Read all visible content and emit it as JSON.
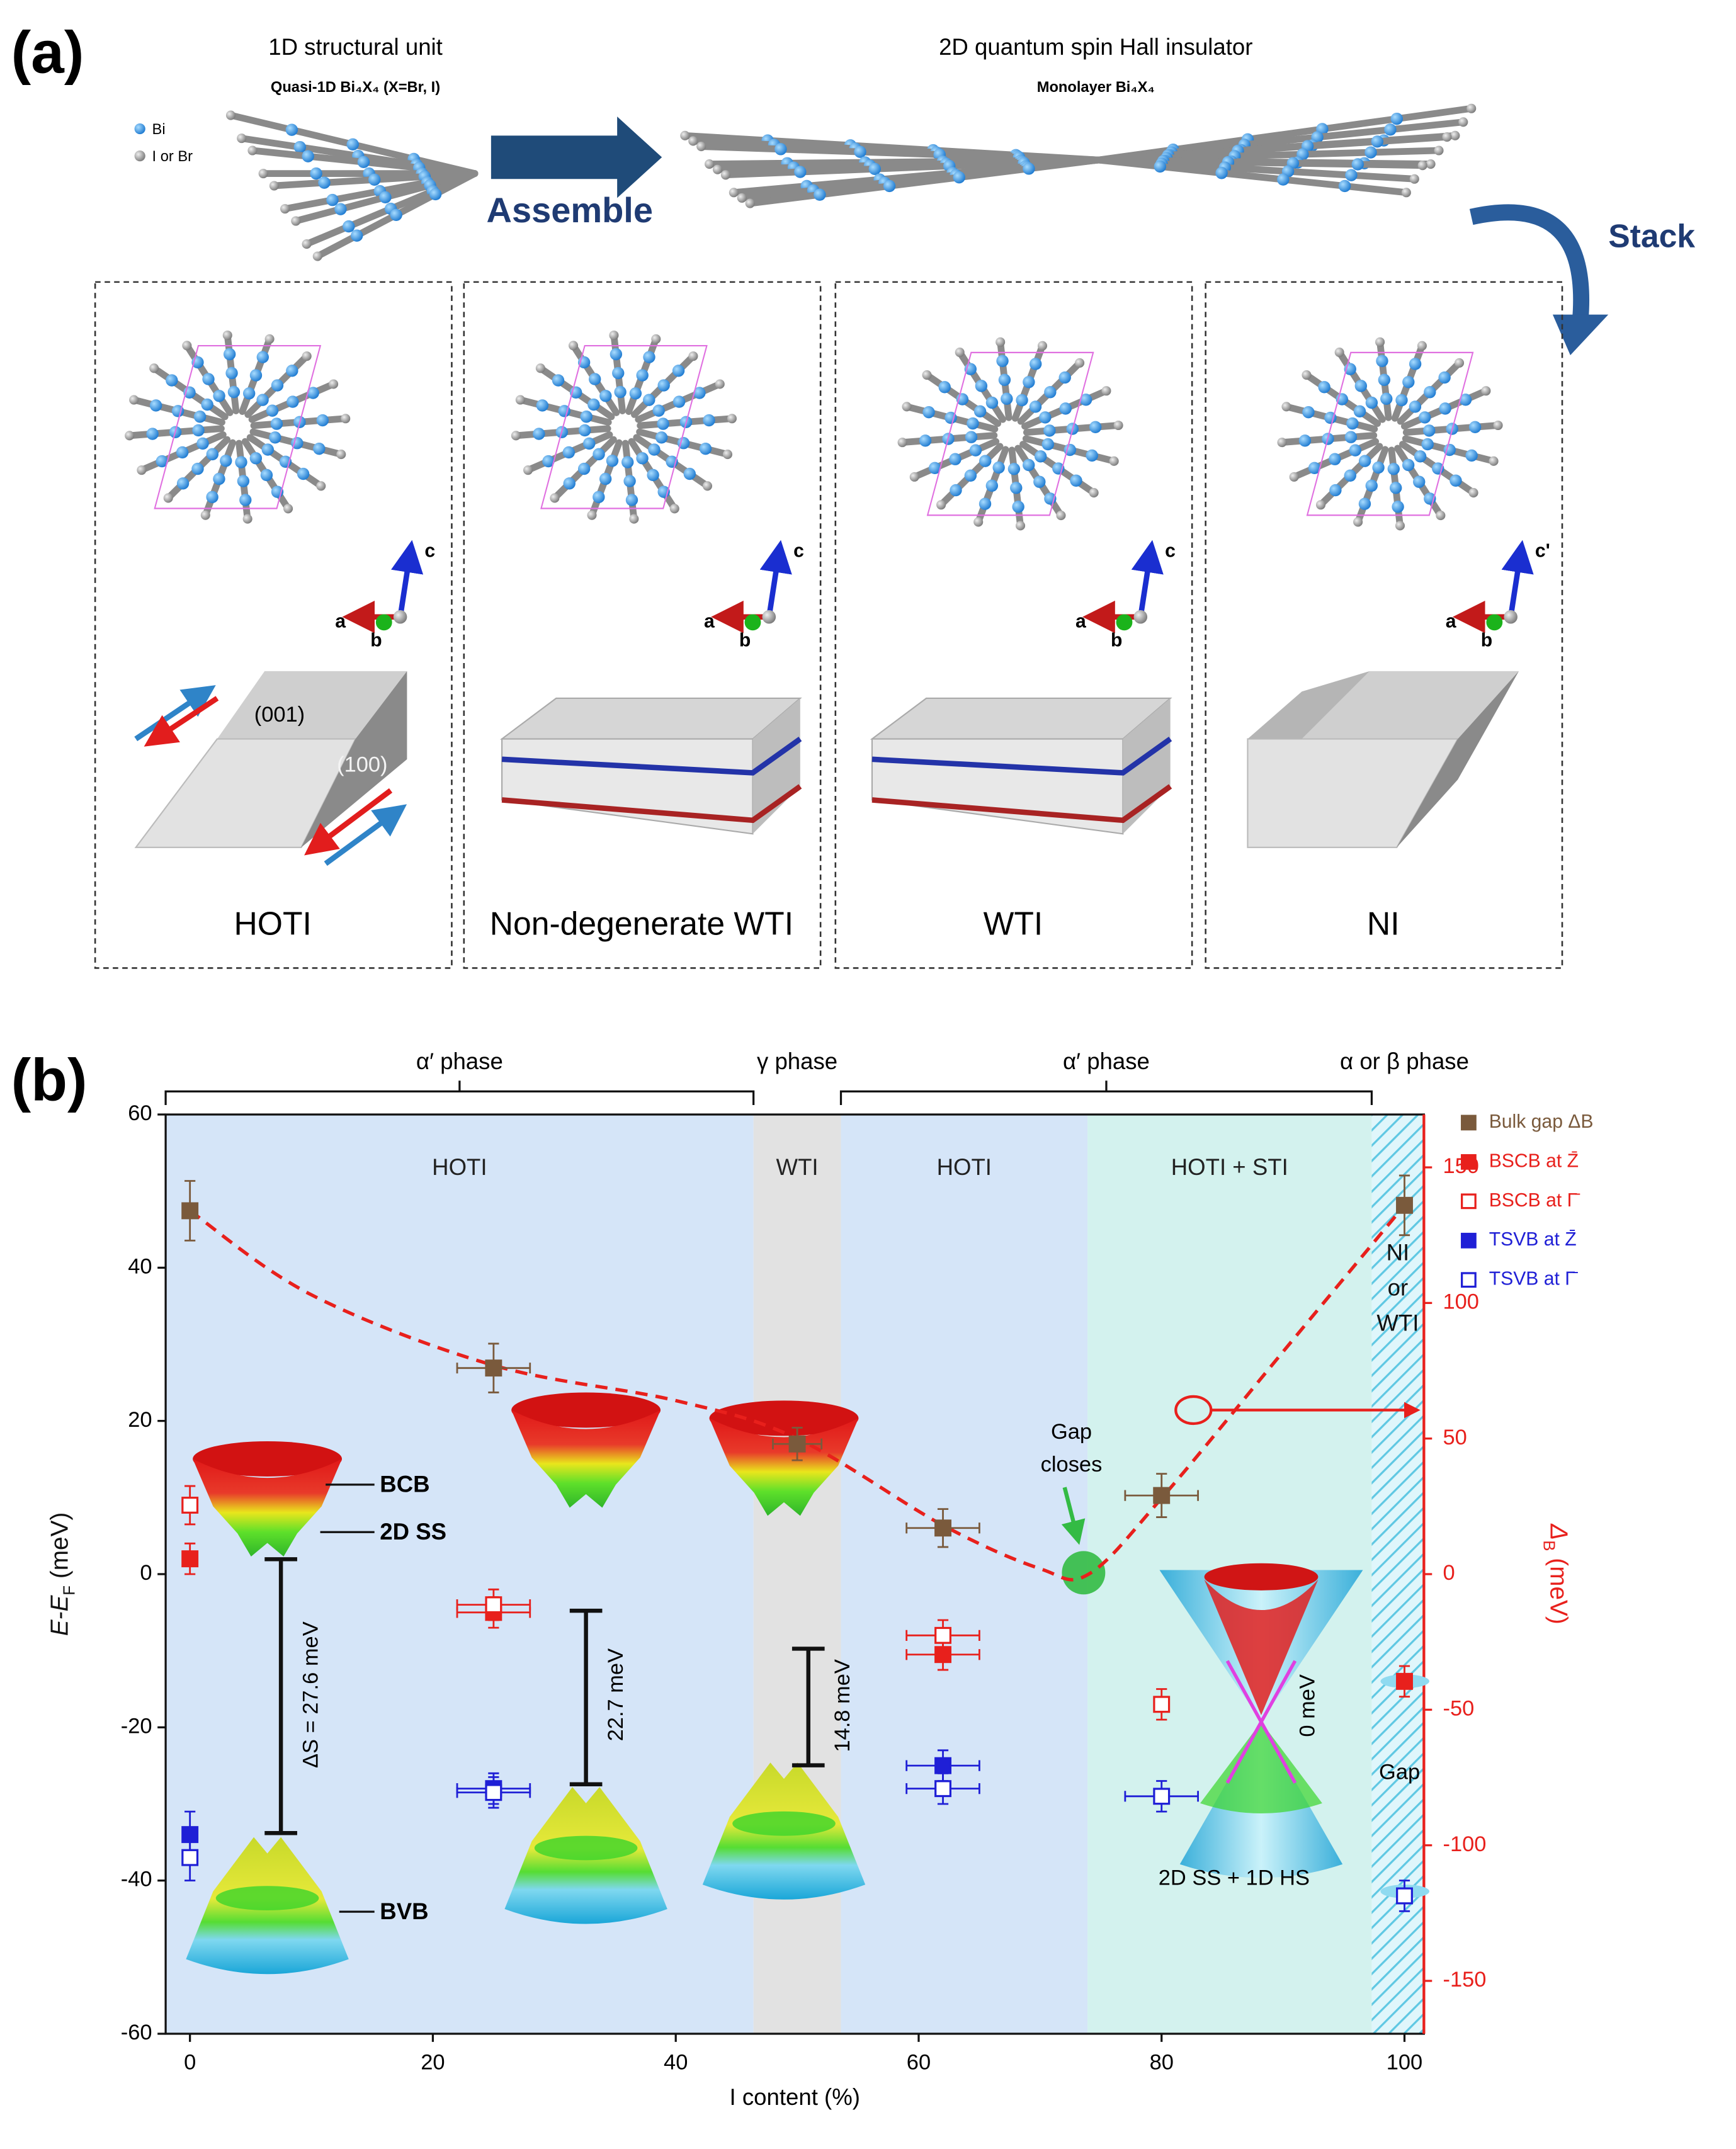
{
  "panel_a": {
    "label": "(a)",
    "left_title": "1D structural unit",
    "left_subtitle": "Quasi-1D Bi₄X₄ (X=Br, I)",
    "right_title": "2D quantum spin Hall insulator",
    "right_subtitle": "Monolayer Bi₄X₄",
    "atom_legend": [
      "Bi",
      "I or Br"
    ],
    "assemble": "Assemble",
    "stack": "Stack",
    "facets": [
      "(001)",
      "(100)"
    ],
    "phases": [
      {
        "name": "HOTI",
        "axes": [
          "a",
          "b",
          "c"
        ]
      },
      {
        "name": "Non-degenerate  WTI",
        "axes": [
          "a",
          "b",
          "c"
        ]
      },
      {
        "name": "WTI",
        "axes": [
          "a",
          "b",
          "c"
        ]
      },
      {
        "name": "NI",
        "axes": [
          "a",
          "b",
          "c'"
        ]
      }
    ]
  },
  "chart_data": {
    "type": "scatter",
    "panel_label": "(b)",
    "x_label": "I content (%)",
    "y_label": [
      "E-E",
      "F",
      " (meV)"
    ],
    "y2_label": [
      "Δ",
      "B",
      " (meV)"
    ],
    "xlim": [
      -2,
      101.6
    ],
    "ylim": [
      -60,
      60
    ],
    "y2lim": [
      -169.5,
      169.5
    ],
    "xticks": [
      0,
      20,
      40,
      60,
      80,
      100
    ],
    "yticks": [
      -60,
      -40,
      -20,
      0,
      20,
      40,
      60
    ],
    "y2ticks": [
      -150,
      -100,
      -50,
      0,
      50,
      100,
      150
    ],
    "phases": [
      {
        "label": "α′ phase",
        "from": -2,
        "to": 46.4,
        "bracket": true
      },
      {
        "label": "γ phase",
        "from": 46.4,
        "to": 53.6,
        "bracket": false
      },
      {
        "label": "α′ phase",
        "from": 53.6,
        "to": 97.3,
        "bracket": true
      },
      {
        "label": "α or β phase",
        "from": 97.3,
        "to": 101.6,
        "bracket": false
      }
    ],
    "regions": [
      {
        "label": [
          "HOTI"
        ],
        "from": -2,
        "to": 46.4,
        "color": "#d5e5f8"
      },
      {
        "label": [
          "WTI"
        ],
        "from": 46.4,
        "to": 53.6,
        "color": "#e2e2e2"
      },
      {
        "label": [
          "HOTI"
        ],
        "from": 53.6,
        "to": 73.9,
        "color": "#d5e5f8"
      },
      {
        "label": [
          "HOTI + STI"
        ],
        "from": 73.9,
        "to": 97.3,
        "color": "#d3f2ee"
      },
      {
        "label": [
          "NI",
          "or",
          "WTI"
        ],
        "from": 97.3,
        "to": 101.6,
        "color": "#bfe9f3"
      }
    ],
    "series": [
      {
        "name": "Bulk gap ΔB",
        "color": "#7a5a3c",
        "marker": "filled",
        "axis": "y2",
        "x": [
          0,
          25,
          50,
          62,
          80,
          100
        ],
        "values": [
          134,
          76,
          48,
          17,
          29,
          136
        ],
        "errors": [
          11,
          9,
          6,
          7,
          8,
          11
        ],
        "xerrors": [
          0,
          3,
          2,
          3,
          3,
          0
        ]
      },
      {
        "name": "BSCB at Z̄",
        "color": "#e8201c",
        "marker": "filled",
        "axis": "y",
        "x": [
          0,
          25,
          62,
          100
        ],
        "values": [
          2,
          -5,
          -10.5,
          -14
        ],
        "errors": [
          2,
          2,
          2,
          2
        ],
        "xerrors": [
          0,
          3,
          3,
          0
        ]
      },
      {
        "name": "BSCB at Γ̄",
        "color": "#e8201c",
        "marker": "open",
        "axis": "y",
        "x": [
          0,
          25,
          62,
          80
        ],
        "values": [
          9,
          -4,
          -8,
          -17
        ],
        "errors": [
          2.5,
          2,
          2,
          2
        ],
        "xerrors": [
          0,
          3,
          3,
          0
        ]
      },
      {
        "name": "TSVB at Z̄",
        "color": "#1f1fd6",
        "marker": "filled",
        "axis": "y",
        "x": [
          0,
          25,
          62
        ],
        "values": [
          -34,
          -28,
          -25
        ],
        "errors": [
          3,
          2,
          2
        ],
        "xerrors": [
          0,
          3,
          3
        ]
      },
      {
        "name": "TSVB at Γ̄",
        "color": "#1f1fd6",
        "marker": "open",
        "axis": "y",
        "x": [
          0,
          25,
          62,
          80,
          100
        ],
        "values": [
          -37,
          -28.5,
          -28,
          -29,
          -42
        ],
        "errors": [
          3,
          2,
          2,
          2,
          2
        ],
        "xerrors": [
          0,
          3,
          3,
          3,
          0
        ]
      }
    ],
    "fit_curve": {
      "color": "#e8201c",
      "axis": "y2",
      "x": [
        0,
        10,
        25,
        40,
        50,
        62,
        70,
        74,
        80,
        90,
        100
      ],
      "values": [
        134,
        103,
        77,
        64,
        50,
        18,
        2,
        0,
        28,
        82,
        136
      ]
    },
    "annotations": {
      "gap_closes": [
        "Gap",
        "closes"
      ],
      "bcb": "BCB",
      "ss": "2D SS",
      "bvb": "BVB",
      "gap_0": "ΔS = 27.6 meV",
      "gap_25": "22.7 meV",
      "gap_50": "14.8 meV",
      "gap_80": "0 meV",
      "dirac": "2D SS + 1D HS",
      "gap": "Gap"
    }
  }
}
